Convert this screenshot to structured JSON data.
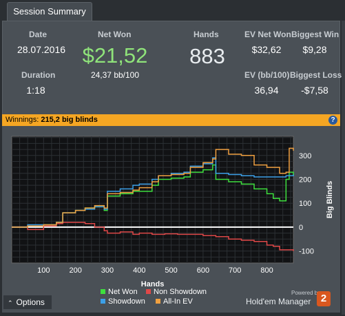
{
  "tab": {
    "label": "Session Summary"
  },
  "stats": {
    "date_label": "Date",
    "date_value": "28.07.2016",
    "duration_label": "Duration",
    "duration_value": "1:18",
    "netwon_label": "Net Won",
    "netwon_value": "$21,52",
    "netwon_bb": "24,37 bb/100",
    "hands_label": "Hands",
    "hands_value": "883",
    "ev_net_label": "EV Net Won",
    "ev_net_value": "$32,62",
    "ev_bb_label": "EV (bb/100)",
    "ev_bb_value": "36,94",
    "biggest_win_label": "Biggest Win",
    "biggest_win_value": "$9,28",
    "biggest_loss_label": "Biggest Loss",
    "biggest_loss_value": "-$7,58"
  },
  "winnings_bar": {
    "prefix": "Winnings:",
    "value": "215,2 big blinds",
    "help_icon": "question-icon"
  },
  "options": {
    "label": "Options",
    "icon": "chevron-up-icon"
  },
  "branding": {
    "powered": "Powered by",
    "product": "Hold'em Manager",
    "badge": "2"
  },
  "colors": {
    "netwon": "#3ee03e",
    "nonshowdown": "#e04848",
    "showdown": "#3ca0e8",
    "allin": "#f0a040",
    "accent": "#f5a623"
  },
  "chart_data": {
    "type": "line",
    "xlabel": "Hands",
    "ylabel": "Big Blinds",
    "xlim": [
      0,
      883
    ],
    "ylim": [
      -150,
      380
    ],
    "xticks": [
      100,
      200,
      300,
      400,
      500,
      600,
      700,
      800
    ],
    "yticks": [
      300,
      200,
      100,
      0,
      -100
    ],
    "series": [
      {
        "name": "Net Won",
        "color": "#3ee03e",
        "x": [
          0,
          50,
          100,
          140,
          160,
          200,
          230,
          260,
          290,
          300,
          340,
          380,
          400,
          440,
          460,
          500,
          540,
          560,
          600,
          630,
          640,
          680,
          720,
          760,
          800,
          820,
          840,
          860,
          870,
          883
        ],
        "y": [
          0,
          5,
          10,
          20,
          60,
          70,
          80,
          85,
          70,
          130,
          140,
          150,
          150,
          175,
          200,
          205,
          210,
          230,
          240,
          260,
          200,
          190,
          180,
          160,
          140,
          120,
          110,
          200,
          230,
          215
        ]
      },
      {
        "name": "Non Showdown",
        "color": "#e04848",
        "x": [
          0,
          50,
          100,
          140,
          160,
          200,
          230,
          260,
          290,
          300,
          340,
          380,
          400,
          440,
          480,
          520,
          560,
          600,
          640,
          680,
          720,
          760,
          800,
          820,
          840,
          860,
          883
        ],
        "y": [
          0,
          -10,
          5,
          15,
          20,
          20,
          15,
          0,
          -15,
          -25,
          -20,
          -30,
          -25,
          -30,
          -28,
          -30,
          -30,
          -35,
          -40,
          -50,
          -55,
          -60,
          -75,
          -80,
          -95,
          -95,
          -100
        ]
      },
      {
        "name": "Showdown",
        "color": "#3ca0e8",
        "x": [
          0,
          50,
          100,
          140,
          160,
          200,
          230,
          260,
          290,
          300,
          340,
          380,
          400,
          440,
          460,
          500,
          540,
          560,
          600,
          630,
          640,
          680,
          720,
          760,
          800,
          860,
          883
        ],
        "y": [
          0,
          10,
          10,
          20,
          60,
          70,
          75,
          85,
          75,
          150,
          160,
          175,
          180,
          200,
          215,
          225,
          230,
          255,
          265,
          290,
          225,
          220,
          215,
          210,
          210,
          215,
          220
        ]
      },
      {
        "name": "All-In EV",
        "color": "#f0a040",
        "x": [
          0,
          50,
          100,
          140,
          160,
          200,
          230,
          260,
          290,
          300,
          340,
          380,
          400,
          440,
          460,
          500,
          540,
          560,
          600,
          630,
          640,
          680,
          720,
          760,
          800,
          840,
          860,
          870,
          883
        ],
        "y": [
          0,
          5,
          10,
          20,
          60,
          70,
          80,
          90,
          80,
          140,
          145,
          155,
          165,
          190,
          215,
          220,
          225,
          250,
          270,
          285,
          325,
          305,
          300,
          260,
          250,
          225,
          230,
          330,
          320
        ]
      }
    ]
  }
}
